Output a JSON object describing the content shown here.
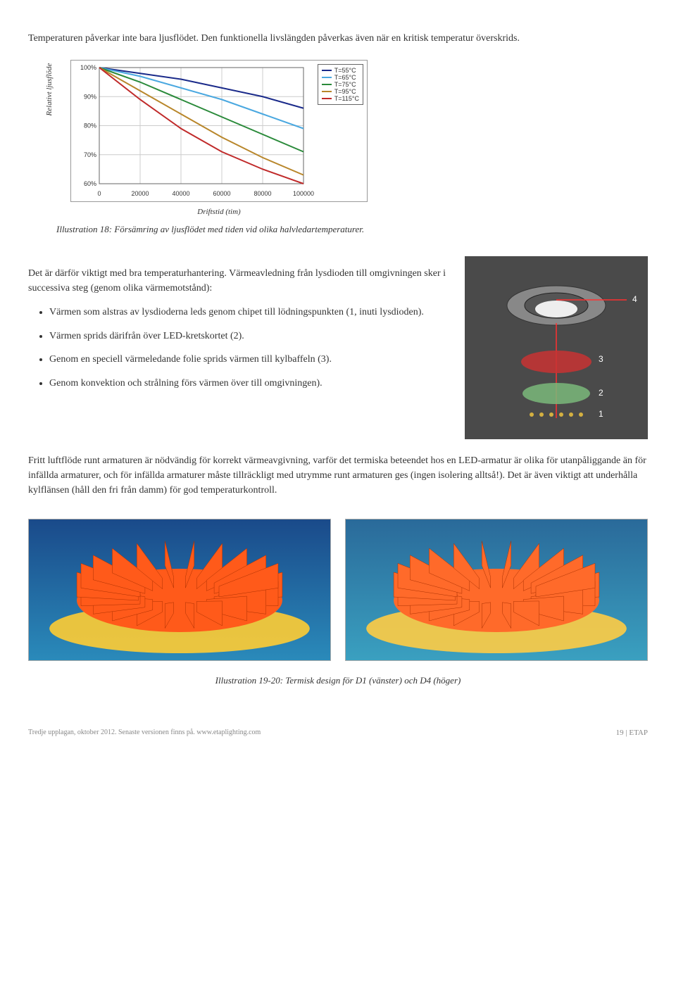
{
  "intro": "Temperaturen påverkar inte bara ljusflödet. Den funktionella livslängden påverkas även när en kritisk temperatur överskrids.",
  "chart": {
    "type": "line",
    "y_label": "Relativt ljusflöde",
    "x_label": "Driftstid (tim)",
    "xlim": [
      0,
      100000
    ],
    "ylim": [
      60,
      100
    ],
    "xticks": [
      0,
      20000,
      40000,
      60000,
      80000,
      100000
    ],
    "xtick_labels": [
      "0",
      "20000",
      "40000",
      "60000",
      "80000",
      "100000"
    ],
    "yticks": [
      60,
      70,
      80,
      90,
      100
    ],
    "ytick_labels": [
      "60%",
      "70%",
      "80%",
      "90%",
      "100%"
    ],
    "grid_color": "#cccccc",
    "background_color": "#ffffff",
    "axis_fontsize": 9,
    "series": [
      {
        "label": "T=55°C",
        "color": "#1a2a8a",
        "points": [
          [
            0,
            100
          ],
          [
            20000,
            98
          ],
          [
            40000,
            96
          ],
          [
            60000,
            93
          ],
          [
            80000,
            90
          ],
          [
            100000,
            86
          ]
        ]
      },
      {
        "label": "T=65°C",
        "color": "#4aa8e0",
        "points": [
          [
            0,
            100
          ],
          [
            20000,
            97
          ],
          [
            40000,
            93
          ],
          [
            60000,
            89
          ],
          [
            80000,
            84
          ],
          [
            100000,
            79
          ]
        ]
      },
      {
        "label": "T=75°C",
        "color": "#2a8a3a",
        "points": [
          [
            0,
            100
          ],
          [
            20000,
            95
          ],
          [
            40000,
            89
          ],
          [
            60000,
            83
          ],
          [
            80000,
            77
          ],
          [
            100000,
            71
          ]
        ]
      },
      {
        "label": "T=95°C",
        "color": "#b8862a",
        "points": [
          [
            0,
            100
          ],
          [
            20000,
            92
          ],
          [
            40000,
            84
          ],
          [
            60000,
            76
          ],
          [
            80000,
            69
          ],
          [
            100000,
            63
          ]
        ]
      },
      {
        "label": "T=115°C",
        "color": "#c02a2a",
        "points": [
          [
            0,
            100
          ],
          [
            20000,
            89
          ],
          [
            40000,
            79
          ],
          [
            60000,
            71
          ],
          [
            80000,
            65
          ],
          [
            100000,
            60
          ]
        ]
      }
    ],
    "caption": "Illustration 18: Försämring av ljusflödet med tiden vid olika halvledartemperaturer."
  },
  "section": {
    "lead": "Det är därför viktigt med bra temperaturhantering. Värmeavledning från lysdioden till omgivningen sker i successiva steg (genom olika värmemotstånd):",
    "bullets": [
      "Värmen som alstras av lysdioderna leds genom chipet till lödningspunkten (1, inuti lysdioden).",
      "Värmen sprids därifrån över LED-kretskortet (2).",
      "Genom en speciell värmeledande folie sprids värmen till kylbaffeln (3).",
      "Genom konvektion och strålning förs värmen över till omgivningen)."
    ]
  },
  "exploded_view": {
    "background_color": "#4a4a4a",
    "fixture_color": "#707070",
    "disc1_color": "#c83232",
    "disc2_color": "#7ab87a",
    "line_color": "#ff3030",
    "labels": [
      "4",
      "3",
      "2",
      "1"
    ]
  },
  "body_para": "Fritt luftflöde runt armaturen är nödvändig för korrekt värmeavgivning, varför det termiska beteendet hos en LED-armatur är olika för utanpåliggande än för infällda armaturer, och för infällda armaturer måste tillräckligt med utrymme runt armaturen ges (ingen isolering alltså!). Det är även viktigt att underhålla kylflänsen (håll den fri från damm) för god temperaturkontroll.",
  "thermal": {
    "left": {
      "bg_gradient": [
        "#1a4a8a",
        "#2a8aba"
      ],
      "heatsink_color": "#ff5a1a",
      "base_color": "#ffcc33"
    },
    "right": {
      "bg_gradient": [
        "#2a6a9a",
        "#3aa0c0"
      ],
      "heatsink_color": "#ff6a2a",
      "base_color": "#ffcc44"
    },
    "caption": "Illustration 19-20: Termisk design för D1 (vänster) och D4 (höger)"
  },
  "footer": {
    "left": "Tredje upplagan, oktober 2012. Senaste versionen finns på. www.etaplighting.com",
    "page": "19",
    "brand": "ETAP"
  }
}
